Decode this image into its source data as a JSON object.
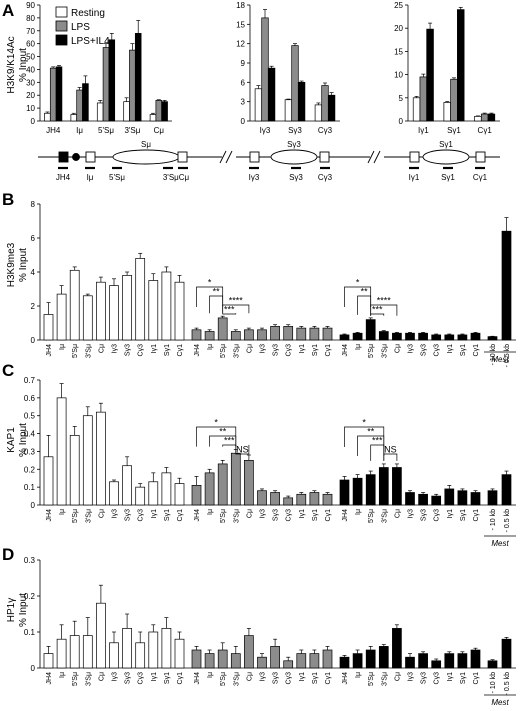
{
  "colors": {
    "resting": "#ffffff",
    "lps": "#8c8c8c",
    "lps_il4": "#000000"
  },
  "legend": [
    "Resting",
    "LPS",
    "LPS+IL4"
  ],
  "panel_letters": [
    "A",
    "B",
    "C",
    "D"
  ],
  "ylabels": {
    "A": [
      "H3K9/K14Ac",
      "% Input"
    ],
    "B": [
      "H3K9me3",
      "% Input"
    ],
    "C": [
      "KAP1",
      "% Input"
    ],
    "D": [
      "HP1γ",
      "% Input"
    ]
  },
  "mest_label": "Mest",
  "map_labels": {
    "s_regions": [
      "Sμ",
      "Sγ3",
      "Sγ1"
    ],
    "segments": [
      "JH4",
      "Iμ",
      "5'Sμ",
      "3'SμCμ",
      "Iγ3",
      "Sγ3",
      "Cγ3",
      "Iγ1",
      "Sγ1",
      "Cγ1"
    ]
  },
  "chart_data": [
    {
      "type": "bar",
      "panel": "A",
      "title": "",
      "ylabel": "H3K9/K14Ac % Input",
      "ylim": [
        0,
        90
      ],
      "yticks": [
        0,
        10,
        20,
        30,
        40,
        50,
        60,
        70,
        80,
        90
      ],
      "categories": [
        "JH4",
        "Iμ",
        "5'Sμ",
        "3'Sμ",
        "Cμ"
      ],
      "series": [
        {
          "name": "Resting",
          "values": [
            6,
            5,
            14,
            15,
            5
          ],
          "errors": [
            1,
            1,
            2,
            3,
            1
          ]
        },
        {
          "name": "LPS",
          "values": [
            41,
            24,
            57,
            55,
            16
          ],
          "errors": [
            1,
            2,
            3,
            5,
            0.5
          ]
        },
        {
          "name": "LPS+IL4",
          "values": [
            42,
            29,
            63,
            68,
            15
          ],
          "errors": [
            1,
            6,
            5,
            10,
            1
          ]
        }
      ]
    },
    {
      "type": "bar",
      "panel": "A2",
      "title": "",
      "ylabel": "",
      "ylim": [
        0,
        18
      ],
      "yticks": [
        0,
        3,
        6,
        9,
        12,
        15,
        18
      ],
      "categories": [
        "Iγ3",
        "Sγ3",
        "Cγ3"
      ],
      "series": [
        {
          "name": "Resting",
          "values": [
            5,
            3.3,
            2.5
          ],
          "errors": [
            0.5,
            0.1,
            0.3
          ]
        },
        {
          "name": "LPS",
          "values": [
            16,
            11.7,
            5.5
          ],
          "errors": [
            1.3,
            0.3,
            0.4
          ]
        },
        {
          "name": "LPS+IL4",
          "values": [
            8.2,
            6,
            4
          ],
          "errors": [
            0.3,
            0.2,
            0.4
          ]
        }
      ]
    },
    {
      "type": "bar",
      "panel": "A3",
      "title": "",
      "ylabel": "",
      "ylim": [
        0,
        25
      ],
      "yticks": [
        0,
        5,
        10,
        15,
        20,
        25
      ],
      "categories": [
        "Iγ1",
        "Sγ1",
        "Cγ1"
      ],
      "series": [
        {
          "name": "Resting",
          "values": [
            5,
            4,
            1
          ],
          "errors": [
            0.3,
            0.2,
            0.1
          ]
        },
        {
          "name": "LPS",
          "values": [
            9.5,
            9,
            1.5
          ],
          "errors": [
            0.6,
            0.3,
            0.2
          ]
        },
        {
          "name": "LPS+IL4",
          "values": [
            19.8,
            24,
            1.5
          ],
          "errors": [
            1.3,
            0.5,
            0.2
          ]
        }
      ]
    },
    {
      "type": "bar",
      "panel": "B",
      "title": "",
      "ylabel": "H3K9me3 % Input",
      "ylim": [
        0,
        8
      ],
      "yticks": [
        0,
        2,
        4,
        6,
        8
      ],
      "categories": [
        "JH4",
        "Iμ",
        "5'Sμ",
        "3'Sμ",
        "Cμ",
        "Iγ3",
        "Sγ3",
        "Cγ3",
        "Iγ1",
        "Sγ1",
        "Cγ1"
      ],
      "mest_categories": [
        "- 10 kb",
        "- 0.5 kb"
      ],
      "series": [
        {
          "name": "Resting",
          "values": [
            1.5,
            2.7,
            4.1,
            2.6,
            3.4,
            3.2,
            3.8,
            4.8,
            3.5,
            4.0,
            3.4
          ],
          "errors": [
            0.7,
            0.5,
            0.2,
            0.1,
            0.3,
            0.4,
            0.2,
            0.3,
            0.4,
            0.3,
            0.4
          ]
        },
        {
          "name": "LPS",
          "values": [
            0.6,
            0.5,
            1.3,
            0.5,
            0.6,
            0.6,
            0.8,
            0.8,
            0.7,
            0.7,
            0.7
          ],
          "errors": [
            0.1,
            0.1,
            0.1,
            0.1,
            0.1,
            0.1,
            0.1,
            0.1,
            0.1,
            0.1,
            0.1
          ]
        },
        {
          "name": "LPS+IL4",
          "values": [
            0.3,
            0.4,
            1.2,
            0.5,
            0.4,
            0.4,
            0.4,
            0.3,
            0.3,
            0.3,
            0.4
          ],
          "errors": [
            0.05,
            0.05,
            0.1,
            0.05,
            0.05,
            0.05,
            0.05,
            0.05,
            0.05,
            0.05,
            0.05
          ],
          "mest_values": [
            0.2,
            6.4
          ],
          "mest_errors": [
            0.02,
            0.8
          ]
        }
      ],
      "significance": {
        "LPS": [
          [
            "JH4",
            "5'Sμ",
            "*"
          ],
          [
            "Iμ",
            "5'Sμ",
            "**"
          ],
          [
            "5'Sμ",
            "Cμ",
            "****"
          ],
          [
            "5'Sμ",
            "3'Sμ",
            "***"
          ]
        ],
        "LPS+IL4": [
          [
            "JH4",
            "5'Sμ",
            "*"
          ],
          [
            "Iμ",
            "5'Sμ",
            "**"
          ],
          [
            "5'Sμ",
            "Cμ",
            "****"
          ],
          [
            "5'Sμ",
            "3'Sμ",
            "***"
          ]
        ]
      }
    },
    {
      "type": "bar",
      "panel": "C",
      "title": "",
      "ylabel": "KAP1 % Input",
      "ylim": [
        0,
        0.7
      ],
      "yticks": [
        0,
        0.1,
        0.2,
        0.3,
        0.4,
        0.5,
        0.6,
        0.7
      ],
      "categories": [
        "JH4",
        "Iμ",
        "5'Sμ",
        "3'Sμ",
        "Cμ",
        "Iγ3",
        "Sγ3",
        "Cγ3",
        "Iγ1",
        "Sγ1",
        "Cγ1"
      ],
      "mest_categories": [
        "- 10 kb",
        "- 0.5 kb"
      ],
      "series": [
        {
          "name": "Resting",
          "values": [
            0.27,
            0.6,
            0.39,
            0.5,
            0.52,
            0.13,
            0.22,
            0.1,
            0.13,
            0.18,
            0.12
          ],
          "errors": [
            0.12,
            0.08,
            0.05,
            0.05,
            0.05,
            0.01,
            0.05,
            0.02,
            0.05,
            0.03,
            0.03
          ]
        },
        {
          "name": "LPS",
          "values": [
            0.11,
            0.18,
            0.23,
            0.29,
            0.25,
            0.08,
            0.07,
            0.04,
            0.06,
            0.07,
            0.06
          ],
          "errors": [
            0.05,
            0.02,
            0.02,
            0.02,
            0.03,
            0.01,
            0.01,
            0.01,
            0.01,
            0.01,
            0.01
          ]
        },
        {
          "name": "LPS+IL4",
          "values": [
            0.14,
            0.15,
            0.17,
            0.21,
            0.21,
            0.07,
            0.06,
            0.05,
            0.09,
            0.08,
            0.07
          ],
          "errors": [
            0.02,
            0.02,
            0.02,
            0.02,
            0.02,
            0.01,
            0.01,
            0.01,
            0.02,
            0.01,
            0.01
          ],
          "mest_values": [
            0.08,
            0.17
          ],
          "mest_errors": [
            0.01,
            0.02
          ]
        }
      ],
      "significance": {
        "LPS": [
          [
            "JH4",
            "3'Sμ",
            "*"
          ],
          [
            "Iμ",
            "3'Sμ",
            "**"
          ],
          [
            "5'Sμ",
            "3'Sμ",
            "***"
          ],
          [
            "3'Sμ",
            "Cμ",
            "NS"
          ]
        ],
        "LPS+IL4": [
          [
            "JH4",
            "3'Sμ",
            "*"
          ],
          [
            "Iμ",
            "3'Sμ",
            "**"
          ],
          [
            "5'Sμ",
            "3'Sμ",
            "***"
          ],
          [
            "3'Sμ",
            "Cμ",
            "NS"
          ]
        ]
      }
    },
    {
      "type": "bar",
      "panel": "D",
      "title": "",
      "ylabel": "HP1γ % Input",
      "ylim": [
        0,
        0.3
      ],
      "yticks": [
        0,
        0.1,
        0.2,
        0.3
      ],
      "categories": [
        "JH4",
        "Iμ",
        "5'Sμ",
        "3'Sμ",
        "Cμ",
        "Iγ3",
        "Sγ3",
        "Cγ3",
        "Iγ1",
        "Sγ1",
        "Cγ1"
      ],
      "mest_categories": [
        "- 10 kb",
        "- 0.5 kb"
      ],
      "series": [
        {
          "name": "Resting",
          "values": [
            0.04,
            0.08,
            0.09,
            0.09,
            0.18,
            0.07,
            0.11,
            0.07,
            0.1,
            0.11,
            0.08
          ],
          "errors": [
            0.02,
            0.04,
            0.04,
            0.05,
            0.05,
            0.03,
            0.04,
            0.03,
            0.02,
            0.03,
            0.02
          ]
        },
        {
          "name": "LPS",
          "values": [
            0.05,
            0.04,
            0.05,
            0.04,
            0.09,
            0.03,
            0.06,
            0.02,
            0.04,
            0.04,
            0.05
          ],
          "errors": [
            0.01,
            0.01,
            0.02,
            0.02,
            0.02,
            0.01,
            0.02,
            0.01,
            0.01,
            0.01,
            0.01
          ]
        },
        {
          "name": "LPS+IL4",
          "values": [
            0.03,
            0.04,
            0.05,
            0.06,
            0.11,
            0.03,
            0.04,
            0.02,
            0.04,
            0.04,
            0.05
          ],
          "errors": [
            0.005,
            0.01,
            0.01,
            0.005,
            0.01,
            0.01,
            0.005,
            0.005,
            0.005,
            0.005,
            0.005
          ],
          "mest_values": [
            0.02,
            0.08
          ],
          "mest_errors": [
            0.003,
            0.005
          ]
        }
      ]
    }
  ]
}
